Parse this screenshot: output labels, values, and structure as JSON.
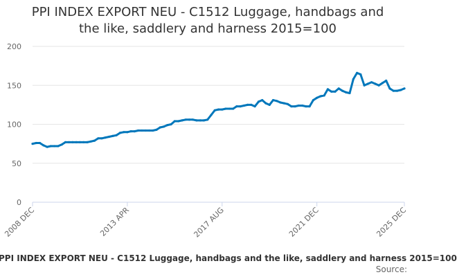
{
  "chart_data": {
    "type": "line",
    "title_lines": [
      "PPI INDEX EXPORT NEU - C1512 Luggage, handbags and",
      "the like, saddlery and harness 2015=100"
    ],
    "xlabel": "",
    "ylabel": "",
    "ylim": [
      0,
      200
    ],
    "y_ticks": [
      "0",
      "50",
      "100",
      "150",
      "200"
    ],
    "x_ticks": [
      "2008 DEC",
      "2013 APR",
      "2017 AUG",
      "2021 DEC",
      "2025 DEC"
    ],
    "grid": true,
    "legend_position": "bottom",
    "series": [
      {
        "name": "PPI INDEX EXPORT NEU - C1512 Luggage, handbags and the like, saddlery and harness 2015=100",
        "color": "#0077bb",
        "x": [
          "2008-12",
          "2009-02",
          "2009-04",
          "2009-06",
          "2009-08",
          "2009-10",
          "2009-12",
          "2010-02",
          "2010-04",
          "2010-06",
          "2010-08",
          "2010-10",
          "2010-12",
          "2011-02",
          "2011-04",
          "2011-06",
          "2011-08",
          "2011-10",
          "2011-12",
          "2012-02",
          "2012-04",
          "2012-06",
          "2012-08",
          "2012-10",
          "2012-12",
          "2013-02",
          "2013-04",
          "2013-06",
          "2013-08",
          "2013-10",
          "2013-12",
          "2014-02",
          "2014-04",
          "2014-06",
          "2014-08",
          "2014-10",
          "2014-12",
          "2015-02",
          "2015-04",
          "2015-06",
          "2015-08",
          "2015-10",
          "2015-12",
          "2016-02",
          "2016-04",
          "2016-06",
          "2016-08",
          "2016-10",
          "2016-12",
          "2017-02",
          "2017-04",
          "2017-06",
          "2017-08",
          "2017-10",
          "2017-12",
          "2018-02",
          "2018-04",
          "2018-06",
          "2018-08",
          "2018-10",
          "2018-12",
          "2019-02",
          "2019-04",
          "2019-06",
          "2019-08",
          "2019-10",
          "2019-12",
          "2020-02",
          "2020-04",
          "2020-06",
          "2020-08",
          "2020-10",
          "2020-12",
          "2021-02",
          "2021-04",
          "2021-06",
          "2021-08",
          "2021-10",
          "2021-12",
          "2022-02",
          "2022-04",
          "2022-06",
          "2022-08",
          "2022-10",
          "2022-12",
          "2023-02",
          "2023-04",
          "2023-06",
          "2023-08",
          "2023-10",
          "2023-12",
          "2024-02",
          "2024-04",
          "2024-06",
          "2024-08",
          "2024-10",
          "2024-12",
          "2025-02",
          "2025-04",
          "2025-06",
          "2025-08",
          "2025-10",
          "2025-12"
        ],
        "values": [
          75,
          76,
          76,
          73,
          71,
          72,
          72,
          72,
          74,
          77,
          77,
          77,
          77,
          77,
          77,
          77,
          78,
          79,
          82,
          82,
          83,
          84,
          85,
          86,
          89,
          90,
          90,
          91,
          91,
          92,
          92,
          92,
          92,
          92,
          93,
          96,
          97,
          99,
          100,
          104,
          104,
          105,
          106,
          106,
          106,
          105,
          105,
          105,
          106,
          112,
          118,
          119,
          119,
          120,
          120,
          120,
          123,
          123,
          124,
          125,
          125,
          123,
          129,
          131,
          127,
          125,
          131,
          130,
          128,
          127,
          126,
          123,
          123,
          124,
          124,
          123,
          123,
          131,
          134,
          136,
          137,
          145,
          142,
          142,
          146,
          143,
          141,
          140,
          158,
          166,
          164,
          150,
          152,
          154,
          152,
          150,
          153,
          156,
          146,
          143,
          143,
          144,
          146
        ]
      }
    ]
  },
  "credits": {
    "source_label": "Source:"
  }
}
